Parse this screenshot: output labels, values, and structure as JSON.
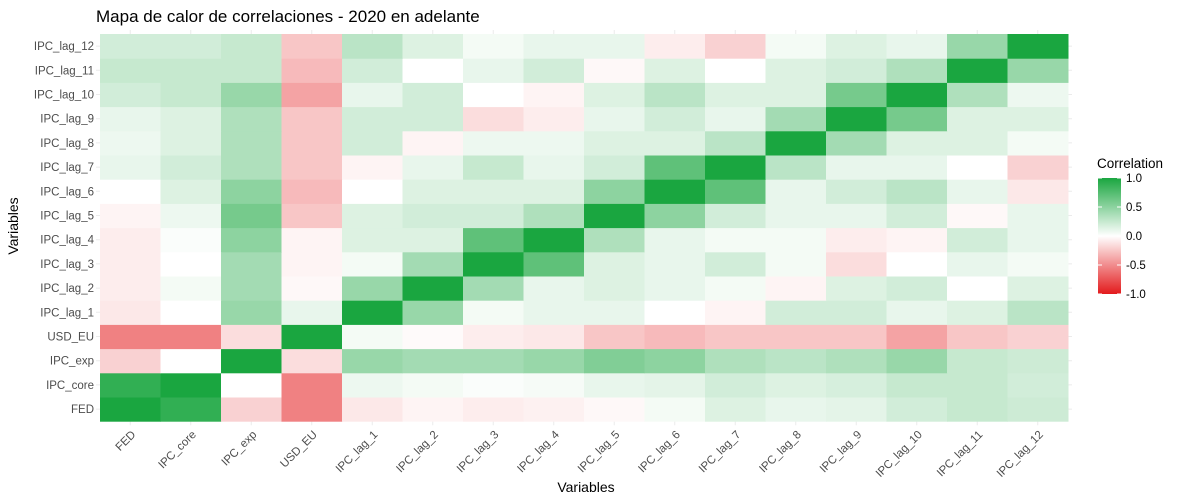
{
  "chart_data": {
    "type": "heatmap",
    "title": "Mapa de calor de correlaciones - 2020 en adelante",
    "xlabel": "Variables",
    "ylabel": "Variables",
    "variables": [
      "FED",
      "IPC_core",
      "IPC_exp",
      "USD_EU",
      "IPC_lag_1",
      "IPC_lag_2",
      "IPC_lag_3",
      "IPC_lag_4",
      "IPC_lag_5",
      "IPC_lag_6",
      "IPC_lag_7",
      "IPC_lag_8",
      "IPC_lag_9",
      "IPC_lag_10",
      "IPC_lag_11",
      "IPC_lag_12"
    ],
    "matrix": [
      [
        1.0,
        0.9,
        -0.2,
        -0.55,
        -0.1,
        -0.05,
        -0.08,
        -0.06,
        -0.03,
        0.05,
        0.15,
        0.1,
        0.12,
        0.2,
        0.25,
        0.22
      ],
      [
        0.9,
        1.0,
        0.0,
        -0.55,
        0.08,
        0.05,
        0.02,
        0.04,
        0.1,
        0.12,
        0.2,
        0.15,
        0.18,
        0.25,
        0.25,
        0.2
      ],
      [
        -0.2,
        0.0,
        1.0,
        -0.15,
        0.45,
        0.4,
        0.4,
        0.45,
        0.55,
        0.5,
        0.35,
        0.3,
        0.35,
        0.45,
        0.25,
        0.22
      ],
      [
        -0.55,
        -0.55,
        -0.15,
        1.0,
        0.05,
        -0.02,
        -0.08,
        -0.1,
        -0.25,
        -0.3,
        -0.25,
        -0.25,
        -0.25,
        -0.4,
        -0.25,
        -0.2
      ],
      [
        -0.1,
        0.0,
        0.45,
        0.1,
        1.0,
        0.45,
        0.05,
        0.1,
        0.1,
        0.0,
        -0.05,
        0.2,
        0.2,
        0.1,
        0.15,
        0.3
      ],
      [
        -0.08,
        0.05,
        0.4,
        -0.03,
        0.45,
        1.0,
        0.4,
        0.1,
        0.15,
        0.1,
        0.05,
        -0.05,
        0.15,
        0.2,
        0.0,
        0.15
      ],
      [
        -0.08,
        0.0,
        0.4,
        -0.05,
        0.05,
        0.4,
        1.0,
        0.7,
        0.15,
        0.1,
        0.2,
        0.05,
        -0.15,
        0.0,
        0.1,
        0.05
      ],
      [
        -0.08,
        0.02,
        0.5,
        -0.05,
        0.15,
        0.15,
        0.7,
        1.0,
        0.35,
        0.1,
        0.05,
        0.05,
        -0.08,
        -0.05,
        0.2,
        0.1
      ],
      [
        -0.05,
        0.08,
        0.6,
        -0.25,
        0.15,
        0.2,
        0.2,
        0.35,
        1.0,
        0.5,
        0.2,
        0.1,
        0.1,
        0.2,
        -0.03,
        0.1
      ],
      [
        0.0,
        0.15,
        0.5,
        -0.3,
        0.0,
        0.15,
        0.15,
        0.15,
        0.5,
        1.0,
        0.7,
        0.1,
        0.2,
        0.3,
        0.1,
        -0.1
      ],
      [
        0.1,
        0.2,
        0.35,
        -0.25,
        -0.05,
        0.1,
        0.25,
        0.1,
        0.2,
        0.7,
        1.0,
        0.3,
        0.1,
        0.1,
        0.0,
        -0.2
      ],
      [
        0.08,
        0.15,
        0.35,
        -0.25,
        0.2,
        -0.05,
        0.08,
        0.08,
        0.15,
        0.15,
        0.3,
        1.0,
        0.4,
        0.15,
        0.15,
        0.05
      ],
      [
        0.1,
        0.15,
        0.35,
        -0.25,
        0.2,
        0.2,
        -0.15,
        -0.08,
        0.1,
        0.2,
        0.1,
        0.4,
        1.0,
        0.6,
        0.15,
        0.15
      ],
      [
        0.2,
        0.25,
        0.45,
        -0.4,
        0.1,
        0.2,
        0.0,
        -0.05,
        0.15,
        0.3,
        0.15,
        0.15,
        0.6,
        1.0,
        0.35,
        0.08
      ],
      [
        0.25,
        0.25,
        0.25,
        -0.3,
        0.2,
        0.0,
        0.1,
        0.2,
        -0.03,
        0.15,
        0.0,
        0.15,
        0.2,
        0.35,
        1.0,
        0.45
      ],
      [
        0.2,
        0.2,
        0.25,
        -0.25,
        0.3,
        0.15,
        0.05,
        0.1,
        0.1,
        -0.08,
        -0.2,
        0.05,
        0.15,
        0.1,
        0.45,
        1.0
      ]
    ],
    "legend": {
      "title": "Correlation",
      "ticks": [
        1.0,
        0.5,
        0.0,
        -0.5,
        -1.0
      ],
      "tick_labels": [
        "1.0",
        "0.5",
        "0.0",
        "-0.5",
        "-1.0"
      ],
      "range": [
        -1,
        1
      ],
      "placement": "right"
    },
    "colors": {
      "low": "#e31a1c",
      "mid": "#ffffff",
      "high": "#1aa640",
      "grid": "#ebebeb"
    },
    "grid": true
  }
}
